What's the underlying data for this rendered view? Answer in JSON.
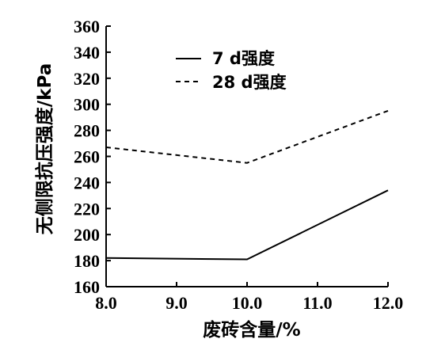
{
  "chart_data": {
    "type": "line",
    "title": "",
    "xlabel": "废砖含量/%",
    "ylabel": "无侧限抗压强度/kPa",
    "x": [
      8.0,
      10.0,
      12.0
    ],
    "x_ticks": [
      "8.0",
      "9.0",
      "10.0",
      "11.0",
      "12.0"
    ],
    "y_ticks": [
      "160",
      "180",
      "200",
      "220",
      "240",
      "260",
      "280",
      "300",
      "320",
      "340",
      "360"
    ],
    "xlim": [
      8.0,
      12.0
    ],
    "ylim": [
      160,
      360
    ],
    "grid": false,
    "legend_position": "top-left",
    "series": [
      {
        "name": "7 d强度",
        "style": "solid",
        "color": "#000000",
        "values": [
          182,
          181,
          234
        ]
      },
      {
        "name": "28 d强度",
        "style": "dashed",
        "color": "#000000",
        "values": [
          267,
          255,
          295
        ]
      }
    ]
  }
}
